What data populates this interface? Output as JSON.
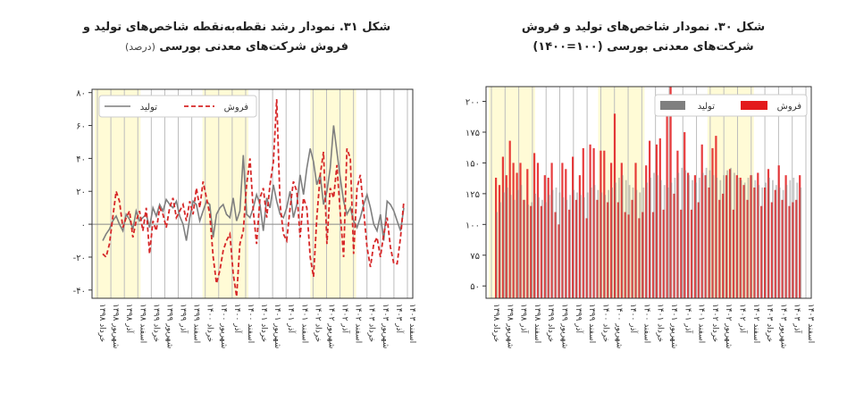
{
  "left_title": {
    "line1": "شکل ۳۱. نمودار رشد نقطه‌به‌نقطه شاخص‌های تولید و",
    "line2": "فروش شرکت‌های معدنی بورسی",
    "unit": "(درصد)"
  },
  "right_title": {
    "line1": "شکل ۳۰. نمودار شاخص‌های تولید و فروش",
    "line2": "شرکت‌های معدنی بورسی (۱۰۰=۱۴۰۰)"
  },
  "colors": {
    "production": "#7f7f7f",
    "sales": "#d62728",
    "highlight": "#fffbd6",
    "grid": "#bdbdbd",
    "bar_sales": "#e31a1c"
  },
  "chart_data": [
    {
      "type": "line",
      "title": "نمودار رشد نقطه‌به‌نقطه شاخص‌های تولید و فروش شرکت‌های معدنی بورسی",
      "ylim": [
        -45,
        82
      ],
      "yticks": [
        "۸۰",
        "۶۰",
        "۴۰",
        "۲۰",
        "۰",
        "-۲۰",
        "-۴۰"
      ],
      "ytick_values": [
        80,
        60,
        40,
        20,
        0,
        -20,
        -40
      ],
      "x_tick_labels": [
        "خرداد ۱۳۹۸",
        "شهریور ۱۳۹۸",
        "آذر ۱۳۹۸",
        "اسفند ۱۳۹۸",
        "خرداد ۱۳۹۹",
        "شهریور ۱۳۹۹",
        "آذر ۱۳۹۹",
        "اسفند ۱۳۹۹",
        "خرداد ۱۴۰۰",
        "شهریور ۱۴۰۰",
        "آذر ۱۴۰۰",
        "اسفند ۱۴۰۰",
        "خرداد ۱۴۰۱",
        "شهریور ۱۴۰۱",
        "آذر ۱۴۰۱",
        "اسفند ۱۴۰۱",
        "خرداد ۱۴۰۲",
        "شهریور ۱۴۰۲",
        "آذر ۱۴۰۲",
        "اسفند ۱۴۰۲",
        "خرداد ۱۴۰۳",
        "شهریور ۱۴۰۳",
        "آذر ۱۴۰۳",
        "اسفند ۱۴۰۳"
      ],
      "highlight_tick_ranges": [
        [
          0,
          3
        ],
        [
          8,
          11
        ],
        [
          16,
          19
        ]
      ],
      "legend": {
        "production": "تولید",
        "sales": "فروش"
      },
      "series": [
        {
          "name": "تولید",
          "values": [
            -10,
            -6,
            -3,
            2,
            5,
            0,
            -4,
            6,
            3,
            -3,
            8,
            2,
            4,
            6,
            -2,
            10,
            5,
            12,
            8,
            15,
            12,
            10,
            14,
            5,
            0,
            -10,
            4,
            14,
            12,
            2,
            8,
            14,
            12,
            -8,
            6,
            10,
            12,
            6,
            4,
            16,
            2,
            8,
            42,
            6,
            4,
            10,
            18,
            12,
            -4,
            16,
            10,
            24,
            14,
            6,
            4,
            10,
            20,
            4,
            12,
            30,
            18,
            34,
            46,
            38,
            24,
            30,
            12,
            20,
            34,
            60,
            44,
            28,
            14,
            6,
            10,
            2,
            -2,
            4,
            12,
            18,
            10,
            0,
            -4,
            6,
            -10,
            14,
            12,
            8,
            2,
            -4,
            10
          ]
        },
        {
          "name": "فروش",
          "values": [
            -18,
            -20,
            -12,
            4,
            20,
            14,
            -2,
            4,
            8,
            -8,
            2,
            8,
            -4,
            10,
            -18,
            2,
            -4,
            10,
            6,
            -2,
            10,
            16,
            4,
            8,
            12,
            2,
            14,
            6,
            22,
            10,
            26,
            16,
            6,
            -20,
            -36,
            -28,
            -16,
            -10,
            -6,
            -30,
            -44,
            -12,
            -4,
            24,
            40,
            8,
            -12,
            16,
            22,
            4,
            24,
            38,
            76,
            12,
            -6,
            -10,
            10,
            26,
            20,
            -8,
            16,
            10,
            -20,
            -32,
            4,
            30,
            44,
            -12,
            22,
            16,
            36,
            6,
            -20,
            46,
            40,
            -18,
            22,
            30,
            8,
            -14,
            -26,
            -12,
            -8,
            -20,
            -6,
            4,
            -14,
            -24,
            -24,
            -8,
            14
          ]
        }
      ]
    },
    {
      "type": "bar",
      "title": "نمودار شاخص‌های تولید و فروش شرکت‌های معدنی بورسی (۱۰۰=۱۴۰۰)",
      "ylim": [
        40,
        212
      ],
      "yticks": [
        "۲۰۰",
        "۱۷۵",
        "۱۵۰",
        "۱۲۵",
        "۱۰۰",
        "۷۵",
        "۵۰"
      ],
      "ytick_values": [
        200,
        175,
        150,
        125,
        100,
        75,
        50
      ],
      "x_tick_labels": [
        "خرداد ۱۳۹۸",
        "شهریور ۱۳۹۸",
        "آذر ۱۳۹۸",
        "اسفند ۱۳۹۸",
        "خرداد ۱۳۹۹",
        "شهریور ۱۳۹۹",
        "آذر ۱۳۹۹",
        "اسفند ۱۳۹۹",
        "خرداد ۱۴۰۰",
        "شهریور ۱۴۰۰",
        "آذر ۱۴۰۰",
        "اسفند ۱۴۰۰",
        "خرداد ۱۴۰۱",
        "شهریور ۱۴۰۱",
        "آذر ۱۴۰۱",
        "اسفند ۱۴۰۱",
        "خرداد ۱۴۰۲",
        "شهریور ۱۴۰۲",
        "آذر ۱۴۰۲",
        "اسفند ۱۴۰۲",
        "خرداد ۱۴۰۳",
        "شهریور ۱۴۰۳",
        "آذر ۱۴۰۳",
        "اسفند ۱۴۰۳"
      ],
      "highlight_tick_ranges": [
        [
          0,
          3
        ],
        [
          8,
          11
        ],
        [
          16,
          19
        ]
      ],
      "legend": {
        "production": "تولید",
        "sales": "فروش"
      },
      "series": [
        {
          "name": "تولید",
          "values": [
            110,
            118,
            126,
            130,
            124,
            120,
            128,
            132,
            120,
            116,
            118,
            125,
            122,
            120,
            118,
            124,
            128,
            130,
            126,
            122,
            120,
            124,
            128,
            126,
            124,
            122,
            126,
            130,
            132,
            128,
            126,
            124,
            128,
            130,
            134,
            138,
            140,
            136,
            132,
            130,
            128,
            126,
            130,
            134,
            138,
            142,
            140,
            136,
            132,
            130,
            134,
            138,
            142,
            146,
            144,
            140,
            136,
            134,
            138,
            142,
            146,
            144,
            140,
            138,
            136,
            140,
            144,
            146,
            142,
            138,
            136,
            134,
            138,
            140,
            136,
            132,
            130,
            134,
            138,
            136,
            132,
            130,
            128,
            132,
            136,
            138,
            134,
            130
          ]
        },
        {
          "name": "فروش",
          "values": [
            138,
            132,
            155,
            140,
            168,
            150,
            142,
            150,
            120,
            145,
            115,
            158,
            150,
            115,
            140,
            138,
            150,
            110,
            100,
            150,
            145,
            112,
            155,
            120,
            140,
            162,
            105,
            165,
            162,
            120,
            160,
            160,
            118,
            150,
            190,
            118,
            150,
            110,
            108,
            120,
            150,
            105,
            110,
            148,
            168,
            110,
            165,
            170,
            112,
            190,
            212,
            125,
            160,
            112,
            175,
            142,
            112,
            140,
            118,
            165,
            140,
            130,
            162,
            172,
            120,
            125,
            140,
            145,
            112,
            140,
            138,
            132,
            120,
            140,
            130,
            142,
            115,
            130,
            145,
            118,
            128,
            148,
            120,
            140,
            115,
            118,
            120,
            140
          ]
        }
      ]
    }
  ]
}
